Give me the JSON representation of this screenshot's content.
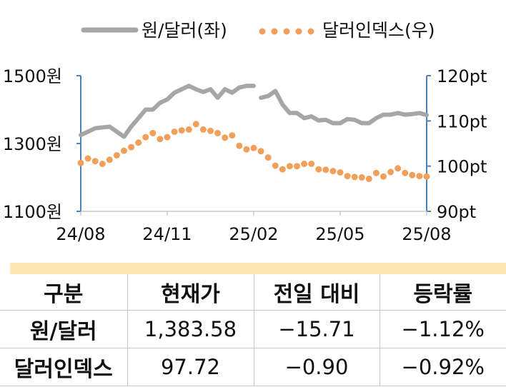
{
  "chart_data": {
    "type": "line",
    "legend": {
      "placement": "top",
      "items": [
        {
          "label": "원/달러(좌)",
          "style": "line",
          "color": "#a6a6a6"
        },
        {
          "label": "달러인덱스(우)",
          "style": "dots",
          "color": "#f0a05a"
        }
      ]
    },
    "x_ticks": [
      "24/08",
      "24/11",
      "25/02",
      "25/05",
      "25/08"
    ],
    "y_left": {
      "ticks": [
        "1500원",
        "1300원",
        "1100원"
      ],
      "range": [
        1100,
        1500
      ]
    },
    "y_right": {
      "ticks": [
        "120pt",
        "110pt",
        "100pt",
        "90pt"
      ],
      "range": [
        90,
        120
      ]
    },
    "series": [
      {
        "name": "원/달러(좌)",
        "axis": "left",
        "color": "#a6a6a6",
        "x": [
          0,
          1,
          2,
          3,
          3.5,
          4,
          4.5,
          5,
          5.5,
          6,
          6.5,
          7,
          7.5,
          8,
          8.5,
          9,
          9.5,
          10,
          10.5,
          11,
          11.5,
          12
        ],
        "values": [
          1325,
          1345,
          1350,
          1320,
          1350,
          1375,
          1400,
          1400,
          1420,
          1430,
          1450,
          1460,
          1470,
          1460,
          1452,
          1460,
          1435,
          1460,
          1450,
          1465,
          1470,
          1470
        ]
      },
      {
        "name": "원/달러(좌)",
        "axis": "left",
        "color": "#a6a6a6",
        "x": [
          12.5,
          13,
          13.5,
          14,
          14.5,
          15,
          15.5,
          16,
          16.5,
          17,
          17.5,
          18,
          18.5,
          19,
          19.5,
          20,
          20.5,
          21,
          21.5,
          22,
          22.5,
          23,
          23.5,
          24
        ],
        "values": [
          1435,
          1440,
          1455,
          1415,
          1390,
          1390,
          1375,
          1380,
          1368,
          1370,
          1360,
          1360,
          1372,
          1370,
          1360,
          1360,
          1375,
          1385,
          1385,
          1390,
          1385,
          1387,
          1390,
          1384
        ]
      },
      {
        "name": "달러인덱스(우)",
        "axis": "right",
        "color": "#f0a05a",
        "x": [
          0,
          0.5,
          1,
          1.5,
          2,
          2.5,
          3,
          3.5,
          4,
          4.5,
          5,
          5.5,
          6,
          6.5,
          7,
          7.5,
          8,
          8.5,
          9,
          9.5,
          10,
          10.5,
          11,
          11.5,
          12,
          12.5,
          13,
          13.5,
          14,
          14.5,
          15,
          15.5,
          16,
          16.5,
          17,
          17.5,
          18,
          18.5,
          19,
          19.5,
          20,
          20.5,
          21,
          21.5,
          22,
          22.5,
          23,
          23.5,
          24
        ],
        "values": [
          100.7,
          101.7,
          101.1,
          100.5,
          101.4,
          102.4,
          103.4,
          104.2,
          105.2,
          106.4,
          107.3,
          106.0,
          106.4,
          107.6,
          107.9,
          108.1,
          109.3,
          108.1,
          107.8,
          107.3,
          106.3,
          106.8,
          104.5,
          103.7,
          104.0,
          103.3,
          101.9,
          100.1,
          99.3,
          100.0,
          100.0,
          100.5,
          100.5,
          99.3,
          99.2,
          98.9,
          98.6,
          97.8,
          97.6,
          97.5,
          97.2,
          98.5,
          97.7,
          98.7,
          99.5,
          98.5,
          98.0,
          97.8,
          97.7
        ]
      }
    ]
  },
  "table": {
    "headers": [
      "구분",
      "현재가",
      "전일 대비",
      "등락률"
    ],
    "rows": [
      [
        "원/달러",
        "1,383.58",
        "−15.71",
        "−1.12%"
      ],
      [
        "달러인덱스",
        "97.72",
        "−0.90",
        "−0.92%"
      ]
    ]
  }
}
